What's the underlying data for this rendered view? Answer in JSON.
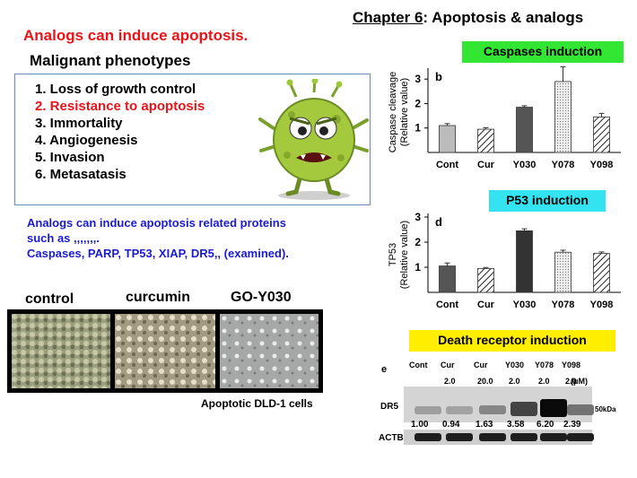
{
  "header": {
    "chapter_link": "Chapter 6",
    "chapter_rest": ": Apoptosis & analogs",
    "red_title": "Analogs can induce apoptosis.",
    "phenotypes_title": "Malignant phenotypes"
  },
  "phenotypes": [
    "1. Loss of growth control",
    "2. Resistance to apoptosis",
    "3. Immortality",
    "4. Angiogenesis",
    "5. Invasion",
    "6. Metasatasis"
  ],
  "blue_text": {
    "line1": "Analogs can induce apoptosis related proteins",
    "line2": "such as ,,,,,,,.",
    "line3": "Caspases, PARP, TP53, XIAP, DR5,, (examined)."
  },
  "photos": {
    "labels": [
      "control",
      "curcumin",
      "GO-Y030"
    ],
    "caption": "Apoptotic DLD-1 cells"
  },
  "badges": {
    "caspases": "Caspases induction",
    "p53": "P53 induction",
    "death": "Death receptor induction"
  },
  "chart_data": [
    {
      "type": "bar",
      "panel": "b",
      "categories": [
        "Cont",
        "Cur",
        "Y030",
        "Y078",
        "Y098"
      ],
      "values": [
        1.1,
        0.95,
        1.85,
        2.9,
        1.45
      ],
      "errors": [
        0.08,
        0.06,
        0.06,
        0.6,
        0.15
      ],
      "ylabel_line1": "Caspase cleavage",
      "ylabel_line2": "(Relative value)",
      "yticks": [
        "1",
        "2",
        "3"
      ],
      "ylim": [
        0,
        3.3
      ],
      "fills": [
        "#bbbbbb",
        "hatch",
        "#555555",
        "dots",
        "hatch"
      ]
    },
    {
      "type": "bar",
      "panel": "d",
      "categories": [
        "Cont",
        "Cur",
        "Y030",
        "Y078",
        "Y098"
      ],
      "values": [
        1.05,
        0.95,
        2.45,
        1.6,
        1.55
      ],
      "errors": [
        0.12,
        0.04,
        0.08,
        0.08,
        0.06
      ],
      "ylabel_line1": "TP53",
      "ylabel_line2": "(Relative value)",
      "yticks": [
        "1",
        "2",
        "3"
      ],
      "ylim": [
        0,
        3.0
      ],
      "fills": [
        "#555555",
        "hatch",
        "#333333",
        "dots",
        "hatch"
      ]
    }
  ],
  "western_blot": {
    "panel": "e",
    "lanes": [
      "Cont",
      "Cur",
      "Cur",
      "Y030",
      "Y078",
      "Y098"
    ],
    "doses": [
      "",
      "2.0",
      "20.0",
      "2.0",
      "2.0",
      "2.0"
    ],
    "unit": "(μM)",
    "dr5_label": "DR5",
    "marker": "50kDa",
    "quant": [
      "1.00",
      "0.94",
      "1.63",
      "3.58",
      "6.20",
      "2.39"
    ],
    "actb_label": "ACTB",
    "dr5_intensity": [
      0.22,
      0.2,
      0.35,
      0.7,
      1.0,
      0.45
    ]
  }
}
